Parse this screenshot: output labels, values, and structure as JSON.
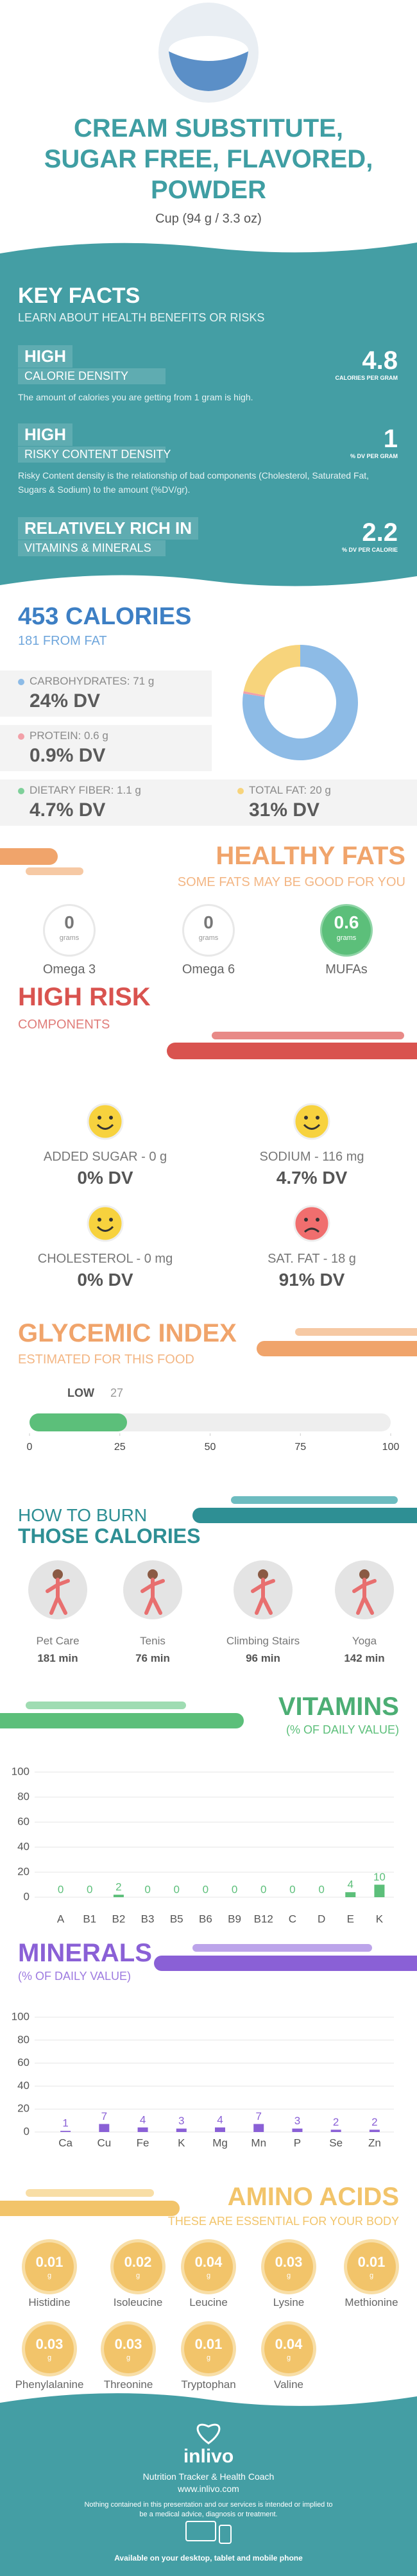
{
  "header": {
    "title": "CREAM SUBSTITUTE, SUGAR FREE, FLAVORED, POWDER",
    "serving": "Cup (94 g / 3.3 oz)"
  },
  "key_facts": {
    "title": "KEY FACTS",
    "subtitle": "LEARN ABOUT HEALTH BENEFITS OR RISKS",
    "facts": [
      {
        "level": "HIGH",
        "label": "CALORIE DENSITY",
        "value": 4.8,
        "unit": "CALORIES PER GRAM",
        "text": "The amount of calories you are getting from 1 gram is high."
      },
      {
        "level": "HIGH",
        "label": "RISKY CONTENT DENSITY",
        "value": 1,
        "unit": "% DV PER GRAM",
        "text": "Risky Content density is the relationship of bad components (Cholesterol, Saturated Fat, Sugars & Sodium) to the amount (%DV/gr)."
      },
      {
        "level": "RELATIVELY RICH IN",
        "label": "VITAMINS & MINERALS",
        "value": 2.2,
        "unit": "% DV PER CALORIE"
      }
    ]
  },
  "calories": {
    "title": "453 CALORIES",
    "subtitle": "181 FROM FAT",
    "nutrients": [
      {
        "label": "CARBOHYDRATES: 71 g",
        "dv": "24% DV"
      },
      {
        "label": "PROTEIN: 0.6 g",
        "dv": "0.9% DV"
      },
      {
        "label": "DIETARY FIBER: 1.1 g",
        "dv": "4.7% DV"
      },
      {
        "label": "TOTAL FAT: 20 g",
        "dv": "31% DV"
      }
    ]
  },
  "healthy_fats": {
    "title": "HEALTHY FATS",
    "subtitle": "SOME FATS MAY BE GOOD FOR YOU",
    "items": [
      {
        "value": 0,
        "unit": "grams",
        "name": "Omega 3"
      },
      {
        "value": 0,
        "unit": "grams",
        "name": "Omega 6"
      },
      {
        "value": 0.6,
        "unit": "grams",
        "name": "MUFAs"
      }
    ]
  },
  "high_risk": {
    "title": "HIGH RISK",
    "subtitle": "COMPONENTS",
    "items": [
      {
        "label": "ADDED SUGAR - 0 g",
        "dv": "0% DV"
      },
      {
        "label": "SODIUM - 116 mg",
        "dv": "4.7% DV"
      },
      {
        "label": "CHOLESTEROL - 0 mg",
        "dv": "0% DV"
      },
      {
        "label": "SAT. FAT - 18 g",
        "dv": "91% DV"
      }
    ]
  },
  "burn": {
    "title_top": "HOW TO BURN",
    "title_bottom": "THOSE CALORIES",
    "activities": [
      {
        "name": "Pet Care",
        "time": "181 min"
      },
      {
        "name": "Tenis",
        "time": "76 min"
      },
      {
        "name": "Climbing Stairs",
        "time": "96 min"
      },
      {
        "name": "Yoga",
        "time": "142 min"
      }
    ]
  },
  "amino_acids": {
    "title": "AMINO ACIDS",
    "subtitle": "THESE ARE ESSENTIAL FOR YOUR BODY",
    "items": [
      {
        "value": 0.01,
        "unit": "g",
        "name": "Histidine"
      },
      {
        "value": 0.02,
        "unit": "g",
        "name": "Isoleucine"
      },
      {
        "value": 0.04,
        "unit": "g",
        "name": "Leucine"
      },
      {
        "value": 0.03,
        "unit": "g",
        "name": "Lysine"
      },
      {
        "value": 0.01,
        "unit": "g",
        "name": "Methionine"
      },
      {
        "value": 0.03,
        "unit": "g",
        "name": "Phenylalanine"
      },
      {
        "value": 0.03,
        "unit": "g",
        "name": "Threonine"
      },
      {
        "value": 0.01,
        "unit": "g",
        "name": "Tryptophan"
      },
      {
        "value": 0.04,
        "unit": "g",
        "name": "Valine"
      }
    ]
  },
  "footer": {
    "brand": "inlivo",
    "tagline": "Nutrition Tracker & Health Coach",
    "url": "www.inlivo.com",
    "disclaimer": "Nothing contained in this presentation and our services is intended or implied to be a medical advice, diagnosis or treatment.",
    "available": "Available on your desktop, tablet and mobile phone"
  },
  "chart_data": [
    {
      "type": "pie",
      "values": [
        71,
        0.6,
        20
      ],
      "colors": [
        "#8dbbe6",
        "#f2a0a8",
        "#f7d47c"
      ]
    },
    {
      "type": "gauge",
      "title": "GLYCEMIC INDEX",
      "subtitle": "ESTIMATED FOR THIS FOOD",
      "label": "LOW",
      "values": [
        27
      ],
      "color": "#5cbf7a",
      "xlim": [
        0,
        100
      ],
      "xticks": [
        0,
        25,
        50,
        75,
        100
      ]
    },
    {
      "type": "bar",
      "title": "VITAMINS",
      "subtitle": "(% OF DAILY VALUE)",
      "categories": [
        "A",
        "B1",
        "B2",
        "B3",
        "B5",
        "B6",
        "B9",
        "B12",
        "C",
        "D",
        "E",
        "K"
      ],
      "values": [
        0,
        0,
        2,
        0,
        0,
        0,
        0,
        0,
        0,
        0,
        4,
        10
      ],
      "color": "#5cbf7a",
      "ylim": [
        0,
        100
      ],
      "yticks": [
        0,
        20,
        40,
        60,
        80,
        100
      ],
      "grid": true
    },
    {
      "type": "bar",
      "title": "MINERALS",
      "subtitle": "(% OF DAILY VALUE)",
      "categories": [
        "Ca",
        "Cu",
        "Fe",
        "K",
        "Mg",
        "Mn",
        "P",
        "Se",
        "Zn"
      ],
      "values": [
        1,
        7,
        4,
        3,
        4,
        7,
        3,
        2,
        2
      ],
      "color": "#8a60d6",
      "ylim": [
        0,
        100
      ],
      "yticks": [
        0,
        20,
        40,
        60,
        80,
        100
      ],
      "grid": true
    }
  ]
}
